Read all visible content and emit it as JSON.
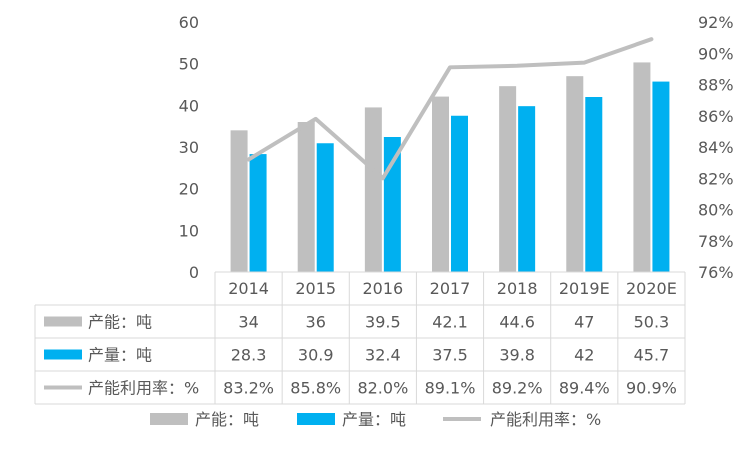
{
  "chart_data": {
    "type": "bar",
    "categories": [
      "2014",
      "2015",
      "2016",
      "2017",
      "2018",
      "2019E",
      "2020E"
    ],
    "series": [
      {
        "name": "产能：吨",
        "type": "bar",
        "axis": "left",
        "color": "#BFBFBF",
        "values": [
          34,
          36,
          39.5,
          42.1,
          44.6,
          47,
          50.3
        ],
        "labels": [
          "34",
          "36",
          "39.5",
          "42.1",
          "44.6",
          "47",
          "50.3"
        ]
      },
      {
        "name": "产量：吨",
        "type": "bar",
        "axis": "right_unused",
        "color": "#00B0F0",
        "values": [
          28.3,
          30.9,
          32.4,
          37.5,
          39.8,
          42,
          45.7
        ],
        "labels": [
          "28.3",
          "30.9",
          "32.4",
          "37.5",
          "39.8",
          "42",
          "45.7"
        ]
      },
      {
        "name": "产能利用率：%",
        "type": "line",
        "axis": "right",
        "color": "#BFBFBF",
        "values": [
          83.2,
          85.8,
          82.0,
          89.1,
          89.2,
          89.4,
          90.9
        ],
        "labels": [
          "83.2%",
          "85.8%",
          "82.0%",
          "89.1%",
          "89.2%",
          "89.4%",
          "90.9%"
        ]
      }
    ],
    "ylim": [
      0,
      60
    ],
    "y_ticks": [
      "0",
      "10",
      "20",
      "30",
      "40",
      "50",
      "60"
    ],
    "y2lim": [
      76,
      92
    ],
    "y2_ticks": [
      "76%",
      "78%",
      "80%",
      "82%",
      "84%",
      "86%",
      "88%",
      "90%",
      "92%"
    ],
    "data_table": true,
    "legend_position": "bottom",
    "grid": false
  }
}
